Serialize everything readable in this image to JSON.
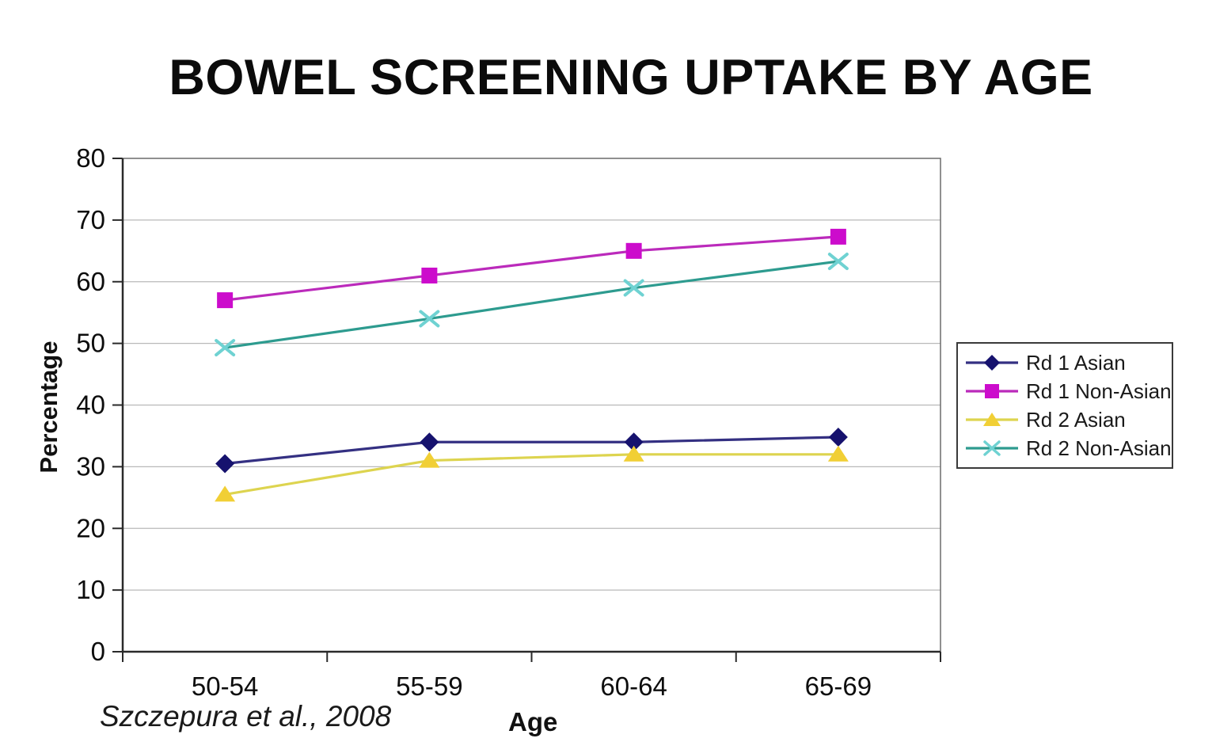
{
  "title": "BOWEL SCREENING UPTAKE BY AGE",
  "citation": "Szczepura et al., 2008",
  "chart_data": {
    "type": "line",
    "title": "BOWEL SCREENING UPTAKE BY AGE",
    "categories": [
      "50-54",
      "55-59",
      "60-64",
      "65-69"
    ],
    "series": [
      {
        "name": "Rd 1 Asian",
        "values": [
          30.5,
          34,
          34,
          34.8
        ],
        "line_color": "#34308280",
        "line_core": "#343082",
        "marker_color": "#16126e",
        "marker": "diamond"
      },
      {
        "name": "Rd 1 Non-Asian",
        "values": [
          57,
          61,
          65,
          67.3
        ],
        "line_color": "#c124c180",
        "line_core": "#bb2abb",
        "marker_color": "#cc0ccc",
        "marker": "square"
      },
      {
        "name": "Rd 2 Asian",
        "values": [
          25.5,
          31,
          32,
          32
        ],
        "line_color": "#ded95580",
        "line_core": "#ddd44f",
        "marker_color": "#f1cf35",
        "marker": "triangle"
      },
      {
        "name": "Rd 2 Non-Asian",
        "values": [
          49.3,
          54,
          59,
          63.3
        ],
        "line_color": "#2d9b8f80",
        "line_core": "#2d9b8f",
        "marker_color": "#6fd2d2",
        "marker": "x"
      }
    ],
    "xlabel": "Age",
    "ylabel": "Percentage",
    "ylim": [
      0,
      80
    ],
    "ytick_step": 10,
    "grid": true,
    "legend_position": "right"
  },
  "colors": {
    "grid": "#b9b9b9",
    "axis": "#2a2a2a",
    "plot_border": "#6b6b6b",
    "tick_label": "#0d0d0d"
  }
}
